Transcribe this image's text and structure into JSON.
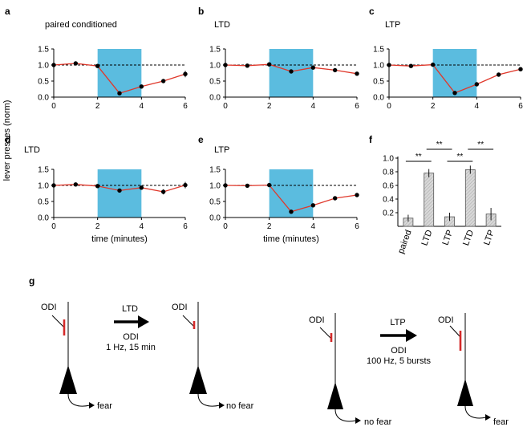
{
  "ylabel_shared": "lever presses (norm)",
  "xlabel_shared": "time (minutes)",
  "colors": {
    "stim": "#5bbcdf",
    "trace": "#e0382b",
    "point": "#000000",
    "bar": "#d8d8d8",
    "neuron_mark": "#d42a2a"
  },
  "chart_data": [
    {
      "panel": "a",
      "title": "paired conditioned",
      "type": "line",
      "x": [
        0,
        1,
        2,
        3,
        4,
        5,
        6
      ],
      "y": [
        1.0,
        1.05,
        0.97,
        0.12,
        0.33,
        0.5,
        0.72
      ],
      "err": [
        0,
        0.04,
        0.03,
        0.03,
        0.04,
        0.05,
        0.1
      ],
      "stim_window": [
        2,
        4
      ],
      "baseline": 1.0,
      "xlim": [
        0,
        6
      ],
      "ylim": [
        0,
        1.5
      ],
      "xticks": [
        "0",
        "2",
        "4",
        "6"
      ],
      "yticks": [
        "0.0",
        "0.5",
        "1.0",
        "1.5"
      ],
      "xlabel": ""
    },
    {
      "panel": "b",
      "title": "LTD",
      "type": "line",
      "x": [
        0,
        1,
        2,
        3,
        4,
        5,
        6
      ],
      "y": [
        1.0,
        0.98,
        1.02,
        0.8,
        0.92,
        0.84,
        0.73
      ],
      "err": [
        0,
        0.03,
        0.04,
        0.04,
        0.05,
        0.04,
        0.04
      ],
      "stim_window": [
        2,
        4
      ],
      "baseline": 1.0,
      "xlim": [
        0,
        6
      ],
      "ylim": [
        0,
        1.5
      ],
      "xticks": [
        "0",
        "2",
        "4",
        "6"
      ],
      "yticks": [
        "0.0",
        "0.5",
        "1.0",
        "1.5"
      ],
      "xlabel": ""
    },
    {
      "panel": "c",
      "title": "LTP",
      "type": "line",
      "x": [
        0,
        1,
        2,
        3,
        4,
        5,
        6
      ],
      "y": [
        1.0,
        0.97,
        1.01,
        0.13,
        0.4,
        0.7,
        0.87
      ],
      "err": [
        0,
        0.03,
        0.03,
        0.03,
        0.04,
        0.05,
        0.04
      ],
      "stim_window": [
        2,
        4
      ],
      "baseline": 1.0,
      "xlim": [
        0,
        6
      ],
      "ylim": [
        0,
        1.5
      ],
      "xticks": [
        "0",
        "2",
        "4",
        "6"
      ],
      "yticks": [
        "0.0",
        "0.5",
        "1.0",
        "1.5"
      ],
      "xlabel": ""
    },
    {
      "panel": "d",
      "title": "LTD",
      "type": "line",
      "x": [
        0,
        1,
        2,
        3,
        4,
        5,
        6
      ],
      "y": [
        1.0,
        1.03,
        0.98,
        0.84,
        0.93,
        0.8,
        1.01
      ],
      "err": [
        0,
        0.03,
        0.03,
        0.04,
        0.06,
        0.08,
        0.1
      ],
      "stim_window": [
        2,
        4
      ],
      "baseline": 1.0,
      "xlim": [
        0,
        6
      ],
      "ylim": [
        0,
        1.5
      ],
      "xticks": [
        "0",
        "2",
        "4",
        "6"
      ],
      "yticks": [
        "0.0",
        "0.5",
        "1.0",
        "1.5"
      ],
      "xlabel": "time (minutes)"
    },
    {
      "panel": "e",
      "title": "LTP",
      "type": "line",
      "x": [
        0,
        1,
        2,
        3,
        4,
        5,
        6
      ],
      "y": [
        1.0,
        0.99,
        1.01,
        0.18,
        0.38,
        0.6,
        0.7
      ],
      "err": [
        0,
        0.03,
        0.03,
        0.03,
        0.04,
        0.05,
        0.05
      ],
      "stim_window": [
        2,
        4
      ],
      "baseline": 1.0,
      "xlim": [
        0,
        6
      ],
      "ylim": [
        0,
        1.5
      ],
      "xticks": [
        "0",
        "2",
        "4",
        "6"
      ],
      "yticks": [
        "0.0",
        "0.5",
        "1.0",
        "1.5"
      ],
      "xlabel": "time (minutes)"
    },
    {
      "panel": "f",
      "title": "",
      "type": "bar",
      "categories": [
        "paired",
        "LTD",
        "LTP",
        "LTD",
        "LTP"
      ],
      "values": [
        0.12,
        0.78,
        0.14,
        0.83,
        0.18
      ],
      "err": [
        0.05,
        0.06,
        0.06,
        0.06,
        0.09
      ],
      "ylim": [
        0,
        1.0
      ],
      "yticks": [
        "0.2",
        "0.4",
        "0.6",
        "0.8",
        "1.0"
      ],
      "significance": [
        {
          "from": 0,
          "to": 1,
          "label": "**"
        },
        {
          "from": 1,
          "to": 2,
          "label": "**"
        },
        {
          "from": 2,
          "to": 3,
          "label": "**"
        },
        {
          "from": 3,
          "to": 4,
          "label": "**"
        }
      ]
    }
  ],
  "panel_g": {
    "letter": "g",
    "neurons": [
      {
        "odi_label": "ODI",
        "output_label": "fear"
      },
      {
        "odi_label": "ODI",
        "output_label": "no fear"
      },
      {
        "odi_label": "ODI",
        "output_label": "no fear"
      },
      {
        "odi_label": "ODI",
        "output_label": "fear"
      }
    ],
    "arrows": [
      {
        "top_label": "LTD",
        "line1": "ODI",
        "line2": "1 Hz, 15 min"
      },
      {
        "top_label": "LTP",
        "line1": "ODI",
        "line2": "100 Hz, 5 bursts"
      }
    ]
  }
}
